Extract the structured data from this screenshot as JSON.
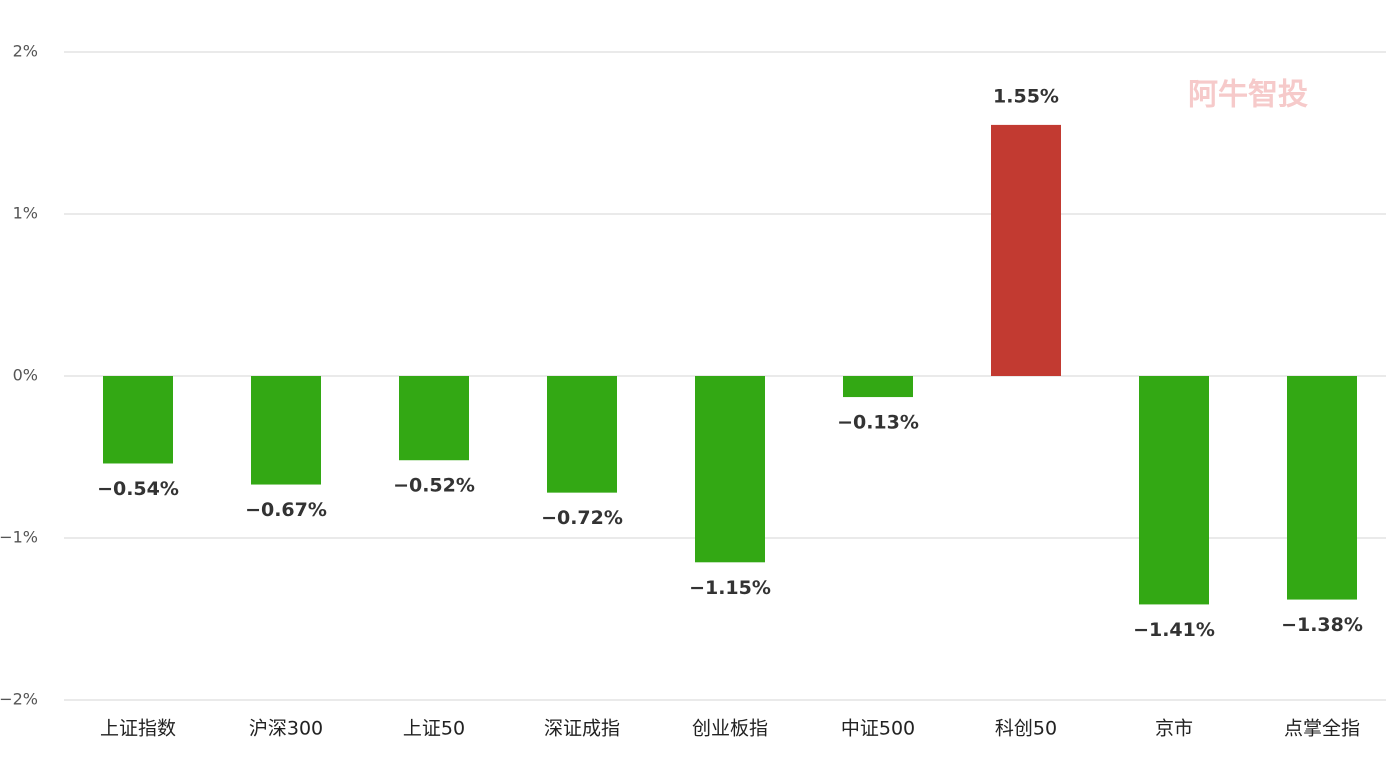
{
  "chart_data": {
    "type": "bar",
    "watermark": "阿牛智投",
    "categories": [
      "上证指数",
      "沪深300",
      "上证50",
      "深证成指",
      "创业板指",
      "中证500",
      "科创50",
      "京市",
      "点掌全指"
    ],
    "values": [
      -0.54,
      -0.67,
      -0.52,
      -0.72,
      -1.15,
      -0.13,
      1.55,
      -1.41,
      -1.38
    ],
    "value_labels": [
      "−0.54%",
      "−0.67%",
      "−0.52%",
      "−0.72%",
      "−1.15%",
      "−0.13%",
      "1.55%",
      "−1.41%",
      "−1.38%"
    ],
    "color_up": "#c23a31",
    "color_down": "#33a814",
    "ylim": [
      -2,
      2
    ],
    "yticks": [
      {
        "value": -2,
        "label": "−2%"
      },
      {
        "value": -1,
        "label": "−1%"
      },
      {
        "value": 0,
        "label": "0%"
      },
      {
        "value": 1,
        "label": "1%"
      },
      {
        "value": 2,
        "label": "2%"
      }
    ],
    "grid": true
  }
}
